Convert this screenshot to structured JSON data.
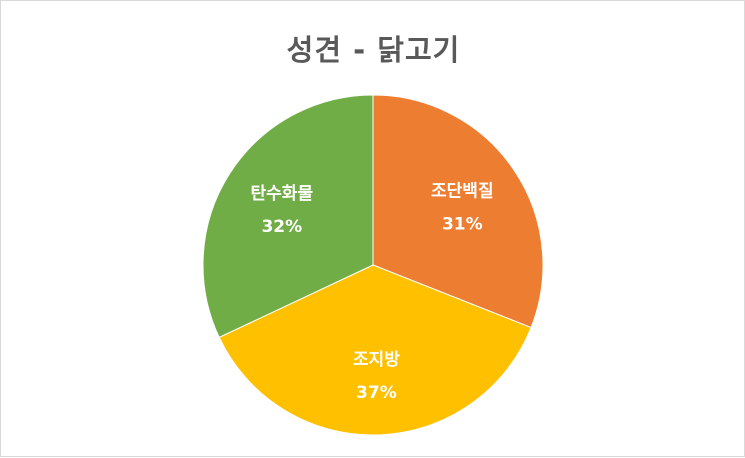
{
  "chart_data": {
    "type": "pie",
    "title": "성견 - 닭고기",
    "slices": [
      {
        "label": "조단백질",
        "value": 31,
        "display": "31%",
        "color": "#ED7D31"
      },
      {
        "label": "조지방",
        "value": 37,
        "display": "37%",
        "color": "#FFC000"
      },
      {
        "label": "탄수화물",
        "value": 32,
        "display": "32%",
        "color": "#70AD47"
      }
    ],
    "start_angle_deg": 0,
    "direction": "clockwise",
    "legend": "none",
    "data_labels": "inside"
  }
}
